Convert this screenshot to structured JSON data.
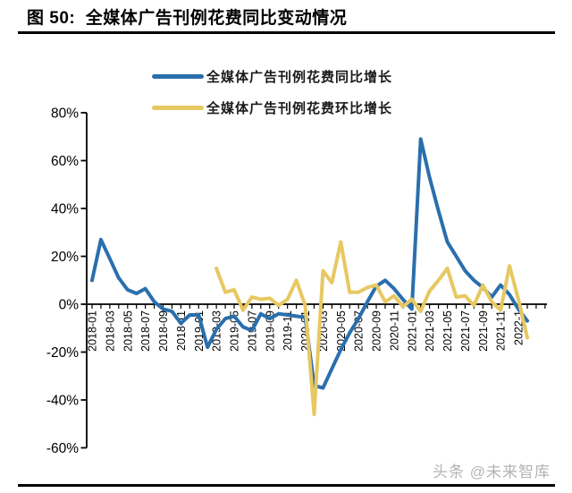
{
  "header": {
    "title": "图 50:  全媒体广告刊例花费同比变动情况"
  },
  "legend": [
    {
      "label": "全媒体广告刊例花费同比增长",
      "color": "#2A6FAD"
    },
    {
      "label": "全媒体广告刊例花费环比增长",
      "color": "#E7C861"
    }
  ],
  "watermark": "头条 @未来智库",
  "chart_data": {
    "type": "line",
    "title": "全媒体广告刊例花费同比变动情况",
    "categories": [
      "2018-01",
      "2018-02",
      "2018-03",
      "2018-04",
      "2018-05",
      "2018-06",
      "2018-07",
      "2018-08",
      "2018-09",
      "2018-10",
      "2018-11",
      "2018-12",
      "2019-01",
      "2019-02",
      "2019-03",
      "2019-04",
      "2019-05",
      "2019-06",
      "2019-07",
      "2019-08",
      "2019-09",
      "2019-10",
      "2019-11",
      "2019-12",
      "2020-01",
      "2020-02",
      "2020-03",
      "2020-04",
      "2020-05",
      "2020-06",
      "2020-07",
      "2020-08",
      "2020-09",
      "2020-10",
      "2020-11",
      "2020-12",
      "2021-01",
      "2021-02",
      "2021-03",
      "2021-04",
      "2021-05",
      "2021-06",
      "2021-07",
      "2021-08",
      "2021-09",
      "2021-10",
      "2021-11",
      "2021-12",
      "2022-01",
      "2022-02"
    ],
    "x_tick_labels": [
      "2018-01",
      "2018-03",
      "2018-05",
      "2018-07",
      "2018-09",
      "2018-11",
      "2019-01",
      "2019-03",
      "2019-05",
      "2019-07",
      "2019-09",
      "2019-11",
      "2020-01",
      "2020-03",
      "2020-05",
      "2020-07",
      "2020-09",
      "2020-11",
      "2021-01",
      "2021-03",
      "2021-05",
      "2021-07",
      "2021-09",
      "2021-11",
      "2022-1"
    ],
    "x_tick_step": 2,
    "series": [
      {
        "name": "全媒体广告刊例花费同比增长",
        "color": "#2A6FAD",
        "values": [
          10,
          27,
          19,
          11,
          6,
          4.5,
          6.5,
          1,
          -2,
          -3,
          -8,
          -4.5,
          -4.5,
          -18,
          -10.5,
          -6,
          -5,
          -9.5,
          -11,
          -4,
          -6,
          -4,
          -4.5,
          -5,
          -5.5,
          -34,
          -35,
          -27,
          -19,
          -12,
          -6,
          1,
          7.5,
          10,
          6.5,
          2,
          -2,
          69,
          53,
          39,
          26,
          20,
          14,
          10,
          7,
          3,
          8,
          4,
          -2,
          -7
        ]
      },
      {
        "name": "全媒体广告刊例花费环比增长",
        "color": "#E7C861",
        "values": [
          null,
          null,
          null,
          null,
          null,
          null,
          null,
          null,
          null,
          null,
          null,
          null,
          null,
          null,
          15,
          5,
          6,
          -2.5,
          3,
          2,
          2.5,
          -0.5,
          2,
          10,
          -0.5,
          -46,
          14,
          9,
          26,
          5,
          5,
          7,
          8,
          1,
          3.5,
          -1,
          2,
          -3,
          5.5,
          10,
          15,
          3,
          3.5,
          -0.5,
          8,
          1,
          -2.5,
          16,
          2,
          -14
        ]
      }
    ],
    "ylim": [
      -60,
      80
    ],
    "y_ticks": [
      80,
      60,
      40,
      20,
      0,
      -20,
      -40,
      -60
    ],
    "y_tick_suffix": "%",
    "grid": false,
    "legend_position": "top"
  }
}
